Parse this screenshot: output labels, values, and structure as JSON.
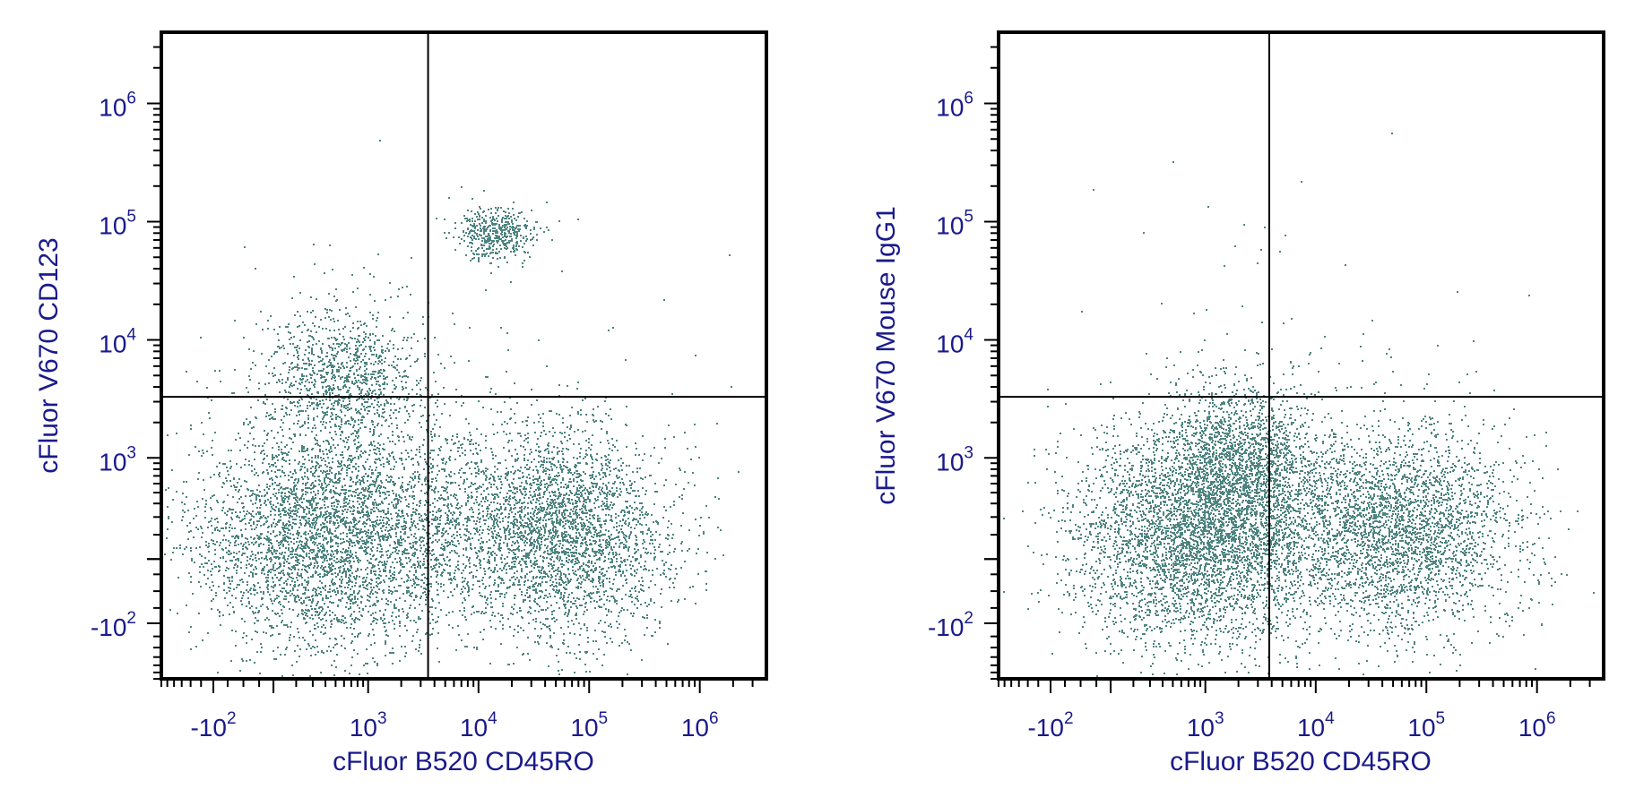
{
  "colors": {
    "events": "#4e8480",
    "axis_text": "#1a1a8c",
    "frame": "#000000",
    "gate": "#000000"
  },
  "chart_data": [
    {
      "type": "scatter",
      "subtype": "flow-cytometry-dot-plot",
      "title": "",
      "xlabel": "cFluor B520 CD45RO",
      "ylabel": "cFluor V670 CD123",
      "x_scale": "biexponential",
      "y_scale": "biexponential",
      "xlim": [
        -400,
        4000000
      ],
      "ylim": [
        -400,
        4000000
      ],
      "x_ticks": [
        {
          "base": "-10",
          "exp": "2",
          "value": -100
        },
        {
          "base": "10",
          "exp": "3",
          "value": 1000
        },
        {
          "base": "10",
          "exp": "4",
          "value": 10000
        },
        {
          "base": "10",
          "exp": "5",
          "value": 100000
        },
        {
          "base": "10",
          "exp": "6",
          "value": 1000000
        }
      ],
      "y_ticks": [
        {
          "base": "-10",
          "exp": "2",
          "value": -100
        },
        {
          "base": "10",
          "exp": "3",
          "value": 1000
        },
        {
          "base": "10",
          "exp": "4",
          "value": 10000
        },
        {
          "base": "10",
          "exp": "5",
          "value": 100000
        },
        {
          "base": "10",
          "exp": "6",
          "value": 1000000
        }
      ],
      "quadrant_gate": {
        "x": 3500,
        "y": 3300
      },
      "grid": false,
      "populations": [
        {
          "x_center": 400,
          "y_center": 200,
          "x_spread": 0.7,
          "y_spread": 0.55,
          "weight": 0.42
        },
        {
          "x_center": 60000,
          "y_center": 220,
          "x_spread": 0.55,
          "y_spread": 0.5,
          "weight": 0.3
        },
        {
          "x_center": 8000,
          "y_center": 250,
          "x_spread": 0.6,
          "y_spread": 0.5,
          "weight": 0.1
        },
        {
          "x_center": 600,
          "y_center": 5000,
          "x_spread": 0.45,
          "y_spread": 0.35,
          "weight": 0.12
        },
        {
          "x_center": 14000,
          "y_center": 80000,
          "x_spread": 0.2,
          "y_spread": 0.12,
          "weight": 0.05
        },
        {
          "x_center": 5000,
          "y_center": 4000,
          "x_spread": 1.2,
          "y_spread": 0.9,
          "weight": 0.01
        }
      ]
    },
    {
      "type": "scatter",
      "subtype": "flow-cytometry-dot-plot",
      "title": "",
      "xlabel": "cFluor B520 CD45RO",
      "ylabel": "cFluor V670 Mouse IgG1",
      "x_scale": "biexponential",
      "y_scale": "biexponential",
      "xlim": [
        -400,
        4000000
      ],
      "ylim": [
        -400,
        4000000
      ],
      "x_ticks": [
        {
          "base": "-10",
          "exp": "2",
          "value": -100
        },
        {
          "base": "10",
          "exp": "3",
          "value": 1000
        },
        {
          "base": "10",
          "exp": "4",
          "value": 10000
        },
        {
          "base": "10",
          "exp": "5",
          "value": 100000
        },
        {
          "base": "10",
          "exp": "6",
          "value": 1000000
        }
      ],
      "y_ticks": [
        {
          "base": "-10",
          "exp": "2",
          "value": -100
        },
        {
          "base": "10",
          "exp": "3",
          "value": 1000
        },
        {
          "base": "10",
          "exp": "4",
          "value": 10000
        },
        {
          "base": "10",
          "exp": "5",
          "value": 100000
        },
        {
          "base": "10",
          "exp": "6",
          "value": 1000000
        }
      ],
      "quadrant_gate": {
        "x": 3800,
        "y": 3300
      },
      "grid": false,
      "populations": [
        {
          "x_center": 800,
          "y_center": 200,
          "x_spread": 0.65,
          "y_spread": 0.55,
          "weight": 0.45
        },
        {
          "x_center": 60000,
          "y_center": 220,
          "x_spread": 0.6,
          "y_spread": 0.5,
          "weight": 0.32
        },
        {
          "x_center": 2000,
          "y_center": 900,
          "x_spread": 0.4,
          "y_spread": 0.4,
          "weight": 0.15
        },
        {
          "x_center": 5000,
          "y_center": 300,
          "x_spread": 0.6,
          "y_spread": 0.5,
          "weight": 0.07
        },
        {
          "x_center": 5000,
          "y_center": 6000,
          "x_spread": 1.2,
          "y_spread": 0.9,
          "weight": 0.01
        }
      ]
    }
  ]
}
